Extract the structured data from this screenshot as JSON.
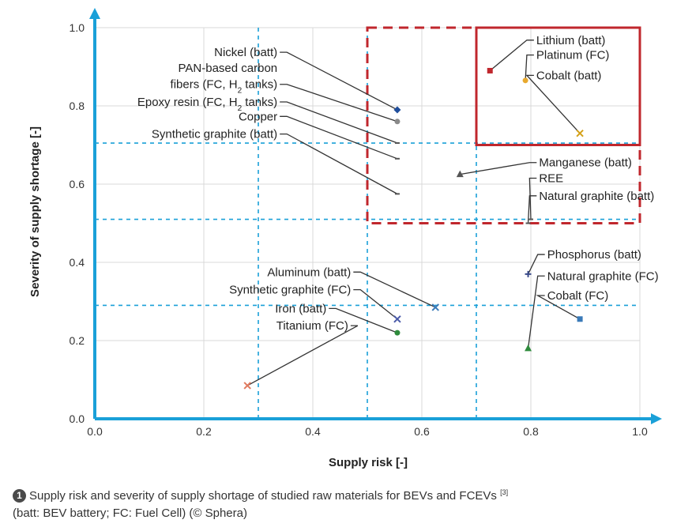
{
  "chart_data": {
    "type": "scatter",
    "xlabel": "Supply risk [-]",
    "ylabel": "Severity of supply shortage [-]",
    "xlim": [
      0,
      1
    ],
    "ylim": [
      0,
      1
    ],
    "xticks": [
      "0.0",
      "0.2",
      "0.4",
      "0.6",
      "0.8",
      "1.0"
    ],
    "yticks": [
      "0.0",
      "0.2",
      "0.4",
      "0.6",
      "0.8",
      "1.0"
    ],
    "grid": true,
    "colors": {
      "axis": "#1aa0d8",
      "grid": "#1aa0d8",
      "highlight": "#c0272d",
      "label_line": "#333333"
    },
    "thresholds": {
      "x": [
        0.3,
        0.5,
        0.7
      ],
      "y": [
        0.29,
        0.51,
        0.705
      ]
    },
    "regions": [
      {
        "style": "dashed",
        "x": [
          0.5,
          1.0
        ],
        "y": [
          0.5,
          1.0
        ]
      },
      {
        "style": "solid",
        "x": [
          0.7,
          1.0
        ],
        "y": [
          0.7,
          1.0
        ]
      }
    ],
    "points": [
      {
        "label": "Nickel (batt)",
        "x": 0.555,
        "y": 0.79,
        "marker": "diamond",
        "color": "#1f4e9c"
      },
      {
        "label": "PAN-based carbon fibers (FC, H2 tanks)",
        "x": 0.555,
        "y": 0.76,
        "marker": "circle",
        "color": "#8a8a8a"
      },
      {
        "label": "Epoxy resin (FC, H2 tanks)",
        "x": 0.555,
        "y": 0.705,
        "marker": "dash",
        "color": "#555555"
      },
      {
        "label": "Copper",
        "x": 0.555,
        "y": 0.665,
        "marker": "dash",
        "color": "#555555"
      },
      {
        "label": "Synthetic graphite (batt)",
        "x": 0.555,
        "y": 0.575,
        "marker": "dash",
        "color": "#555555"
      },
      {
        "label": "Lithium (batt)",
        "x": 0.725,
        "y": 0.89,
        "marker": "square",
        "color": "#c0272d"
      },
      {
        "label": "Platinum (FC)",
        "x": 0.79,
        "y": 0.865,
        "marker": "circle",
        "color": "#e8a92e"
      },
      {
        "label": "Cobalt (batt)",
        "x": 0.89,
        "y": 0.73,
        "marker": "x",
        "color": "#d4a017"
      },
      {
        "label": "Manganese (batt)",
        "x": 0.67,
        "y": 0.625,
        "marker": "triangle",
        "color": "#555555"
      },
      {
        "label": "REE",
        "x": 0.8,
        "y": 0.51,
        "marker": "dash",
        "color": "#555555"
      },
      {
        "label": "Natural graphite (batt)",
        "x": 0.795,
        "y": 0.5,
        "marker": "dash",
        "color": "#555555"
      },
      {
        "label": "Aluminum (batt)",
        "x": 0.625,
        "y": 0.285,
        "marker": "x",
        "color": "#3a7ab8"
      },
      {
        "label": "Synthetic graphite (FC)",
        "x": 0.555,
        "y": 0.255,
        "marker": "x",
        "color": "#4a5aa8"
      },
      {
        "label": "Iron (batt)",
        "x": 0.555,
        "y": 0.22,
        "marker": "circle",
        "color": "#2e8b3c"
      },
      {
        "label": "Titanium (FC)",
        "x": 0.28,
        "y": 0.085,
        "marker": "x",
        "color": "#e07a5f"
      },
      {
        "label": "Phosphorus (batt)",
        "x": 0.795,
        "y": 0.37,
        "marker": "plus",
        "color": "#3a4a8a"
      },
      {
        "label": "Natural graphite (FC)",
        "x": 0.795,
        "y": 0.18,
        "marker": "triangle",
        "color": "#2e8b3c"
      },
      {
        "label": "Cobalt (FC)",
        "x": 0.89,
        "y": 0.255,
        "marker": "square",
        "color": "#3a7ab8"
      }
    ],
    "labels": [
      {
        "text": "Nickel (batt)",
        "anchor": "end",
        "tx": 0.335,
        "ty": 0.927,
        "point": 0
      },
      {
        "text": "PAN-based carbon",
        "anchor": "end",
        "tx": 0.335,
        "ty": 0.887,
        "point": -1
      },
      {
        "text": "fibers (FC, H",
        "sub": "2",
        "after": " tanks)",
        "anchor": "end",
        "tx": 0.335,
        "ty": 0.845,
        "point": 1
      },
      {
        "text": "Epoxy resin (FC, H",
        "sub": "2",
        "after": " tanks)",
        "anchor": "end",
        "tx": 0.335,
        "ty": 0.8,
        "point": 2
      },
      {
        "text": "Copper",
        "anchor": "end",
        "tx": 0.335,
        "ty": 0.763,
        "point": 3
      },
      {
        "text": "Synthetic graphite (batt)",
        "anchor": "end",
        "tx": 0.335,
        "ty": 0.718,
        "point": 4
      },
      {
        "text": "Lithium (batt)",
        "anchor": "start",
        "tx": 0.81,
        "ty": 0.958,
        "point": 5
      },
      {
        "text": "Platinum (FC)",
        "anchor": "start",
        "tx": 0.81,
        "ty": 0.92,
        "point": 6
      },
      {
        "text": "Cobalt (batt)",
        "anchor": "start",
        "tx": 0.81,
        "ty": 0.868,
        "point": 7
      },
      {
        "text": "Manganese (batt)",
        "anchor": "start",
        "tx": 0.815,
        "ty": 0.645,
        "point": 8
      },
      {
        "text": "REE",
        "anchor": "start",
        "tx": 0.815,
        "ty": 0.605,
        "point": 9
      },
      {
        "text": "Natural graphite (batt)",
        "anchor": "start",
        "tx": 0.815,
        "ty": 0.56,
        "point": 10
      },
      {
        "text": "Aluminum (batt)",
        "anchor": "end",
        "tx": 0.47,
        "ty": 0.365,
        "point": 11
      },
      {
        "text": "Synthetic graphite (FC)",
        "anchor": "end",
        "tx": 0.47,
        "ty": 0.32,
        "point": 12
      },
      {
        "text": "Iron (batt)",
        "anchor": "end",
        "tx": 0.425,
        "ty": 0.272,
        "point": 13
      },
      {
        "text": "Titanium (FC)",
        "anchor": "end",
        "tx": 0.465,
        "ty": 0.228,
        "point": 14
      },
      {
        "text": "Phosphorus (batt)",
        "anchor": "start",
        "tx": 0.83,
        "ty": 0.41,
        "point": 15
      },
      {
        "text": "Natural graphite (FC)",
        "anchor": "start",
        "tx": 0.83,
        "ty": 0.355,
        "point": 16
      },
      {
        "text": "Cobalt (FC)",
        "anchor": "start",
        "tx": 0.83,
        "ty": 0.305,
        "point": 17
      }
    ]
  },
  "caption": {
    "number": "1",
    "text": "Supply risk and severity of supply shortage of studied raw materials for BEVs and FCEVs",
    "ref": "[3]",
    "line2": "(batt: BEV battery; FC: Fuel Cell) (© Sphera)"
  }
}
